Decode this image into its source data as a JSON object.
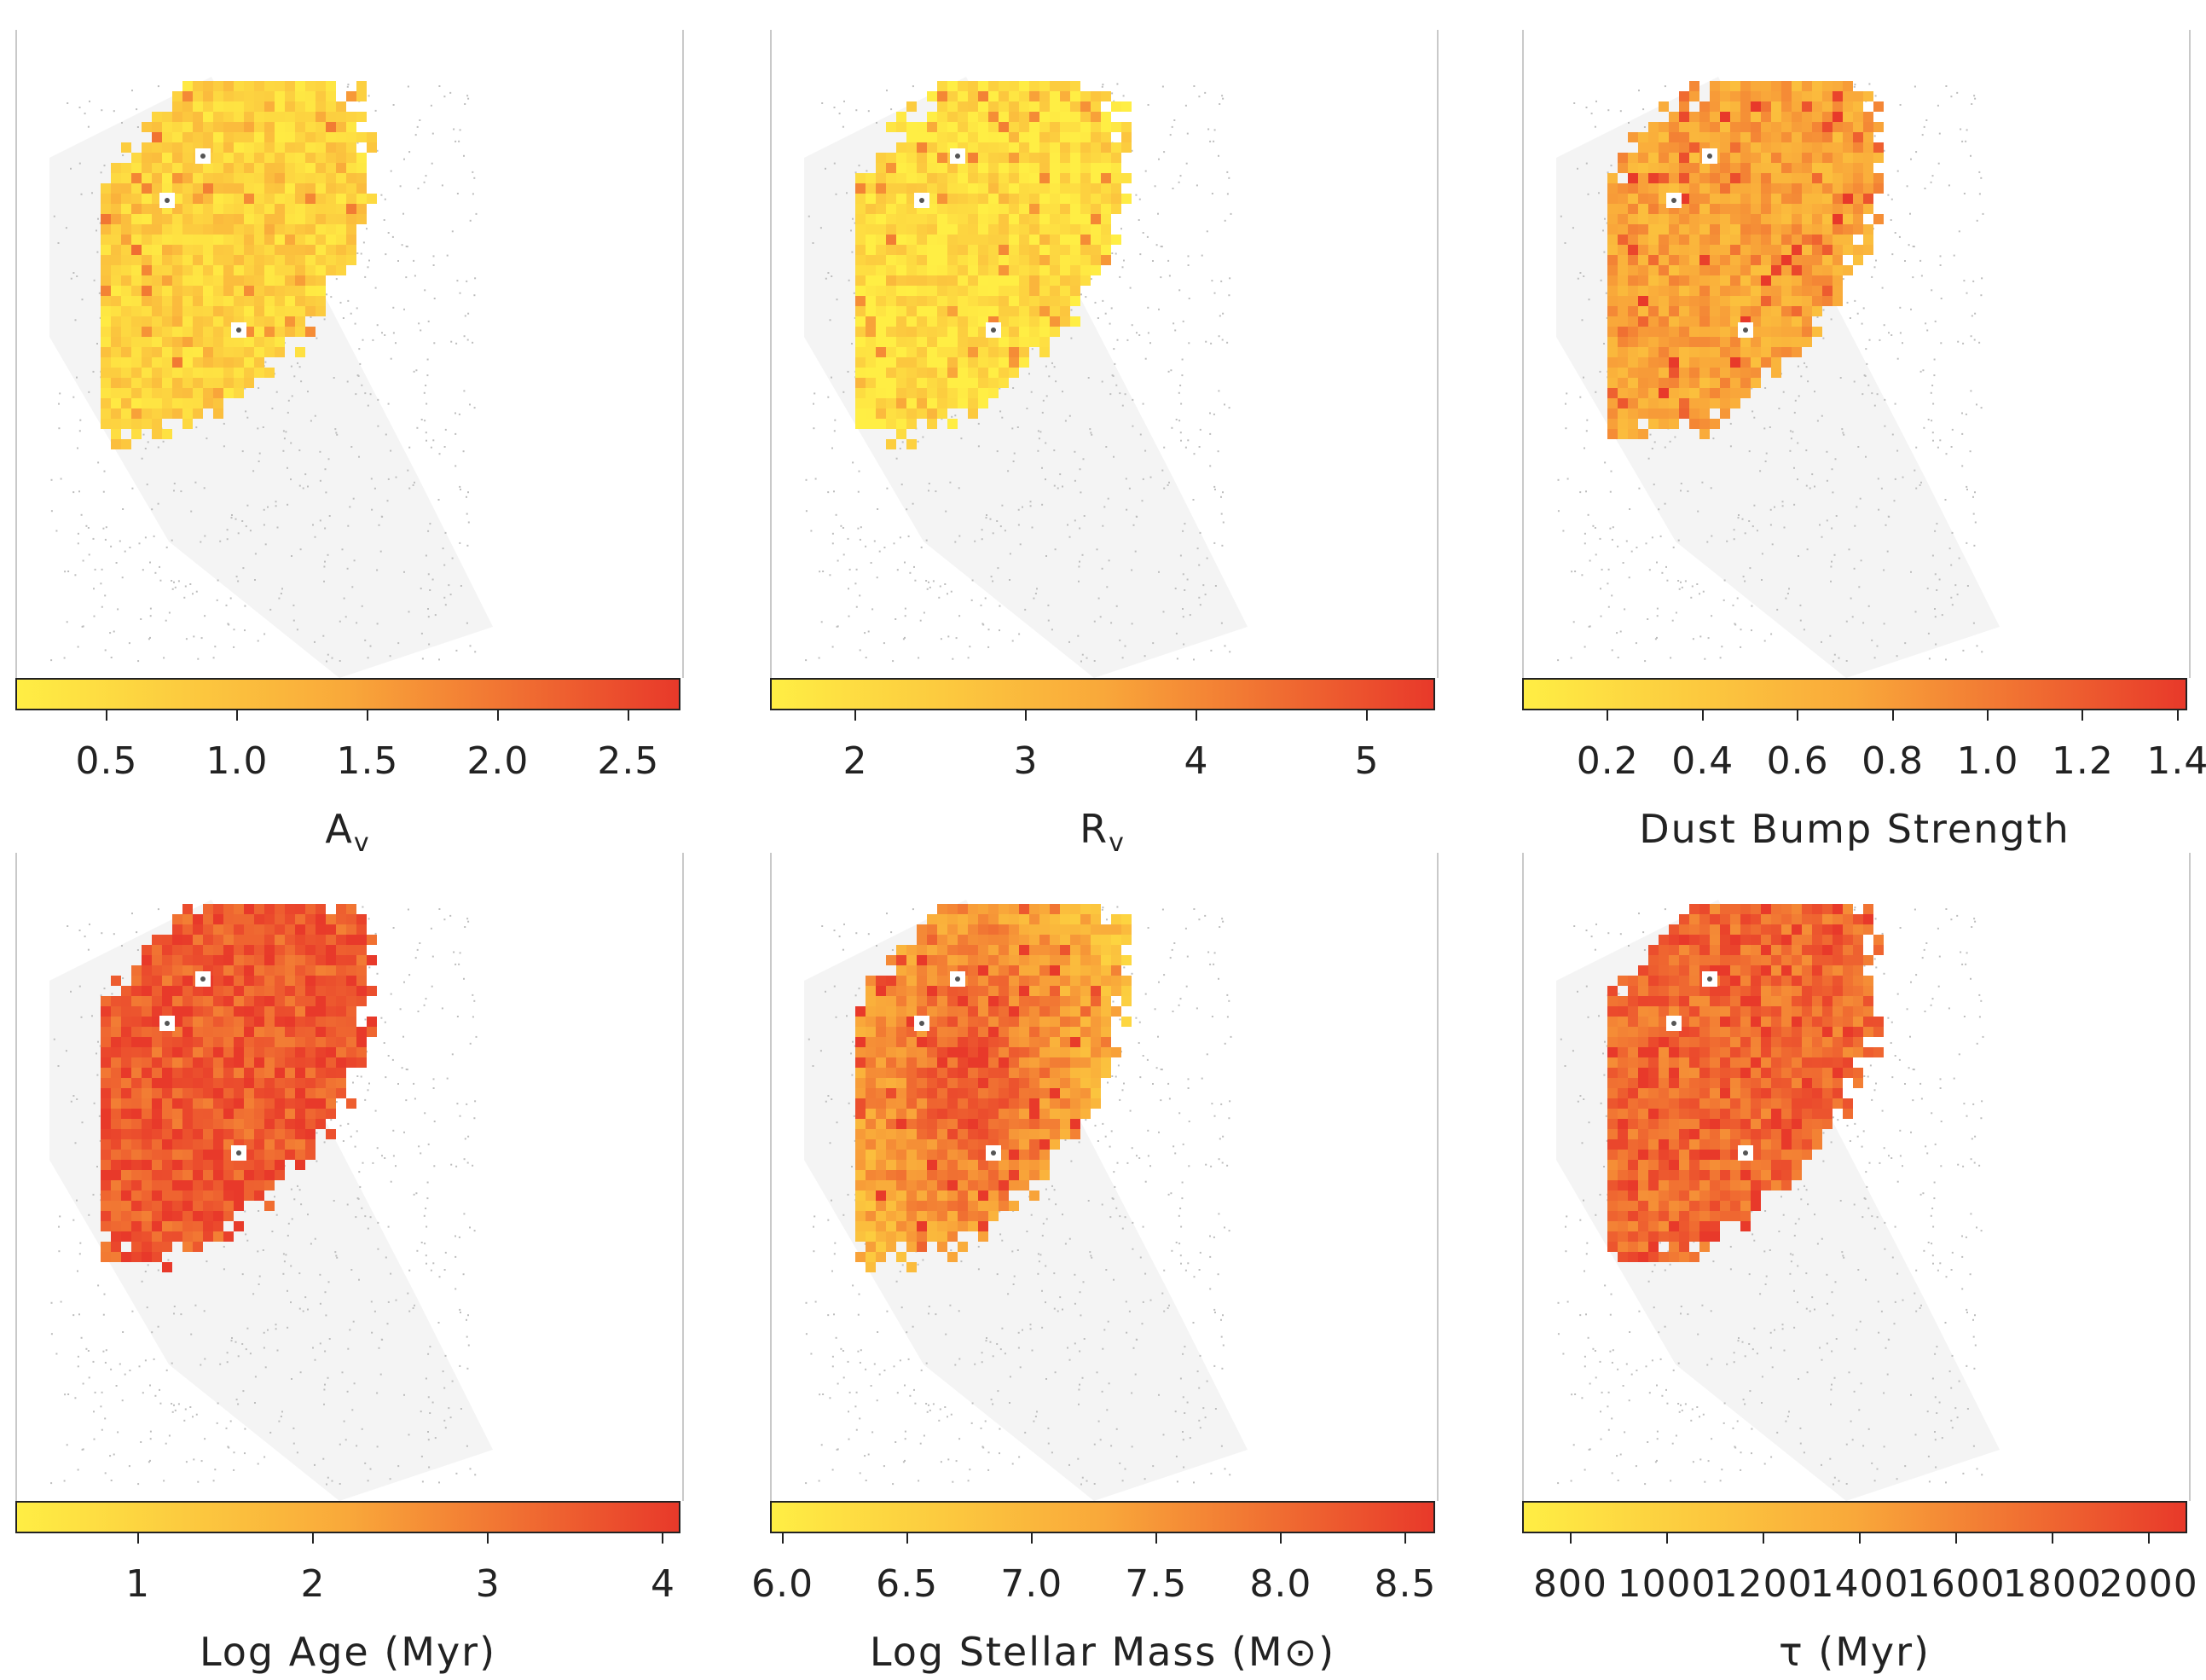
{
  "chart_data": [
    {
      "type": "heatmap",
      "name": "av",
      "xlabel": "A",
      "xlabel_sub": "v",
      "ticks": [
        0.5,
        1.0,
        1.5,
        2.0,
        2.5
      ],
      "tick_labels": [
        "0.5",
        "1.0",
        "1.5",
        "2.0",
        "2.5"
      ],
      "range": [
        0.15,
        2.7
      ],
      "colormap": [
        "#ffee44",
        "#f9a83a",
        "#e8392a"
      ],
      "mean_level": 0.2
    },
    {
      "type": "heatmap",
      "name": "rv",
      "xlabel": "R",
      "xlabel_sub": "v",
      "ticks": [
        2,
        3,
        4,
        5
      ],
      "tick_labels": [
        "2",
        "3",
        "4",
        "5"
      ],
      "range": [
        1.5,
        5.4
      ],
      "colormap": [
        "#ffee44",
        "#f9a83a",
        "#e8392a"
      ],
      "mean_level": 0.12
    },
    {
      "type": "heatmap",
      "name": "bump",
      "xlabel": "Dust Bump Strength",
      "xlabel_sub": "",
      "ticks": [
        0.2,
        0.4,
        0.6,
        0.8,
        1.0,
        1.2,
        1.4
      ],
      "tick_labels": [
        "0.2",
        "0.4",
        "0.6",
        "0.8",
        "1.0",
        "1.2",
        "1.4"
      ],
      "range": [
        0.02,
        1.42
      ],
      "colormap": [
        "#ffee44",
        "#f9a83a",
        "#e8392a"
      ],
      "mean_level": 0.5
    },
    {
      "type": "heatmap",
      "name": "age",
      "xlabel": "Log Age (Myr)",
      "xlabel_sub": "",
      "ticks": [
        1,
        2,
        3,
        4
      ],
      "tick_labels": [
        "1",
        "2",
        "3",
        "4"
      ],
      "range": [
        0.3,
        4.1
      ],
      "colormap": [
        "#ffee44",
        "#f9a83a",
        "#e8392a"
      ],
      "mean_level": 0.85
    },
    {
      "type": "heatmap",
      "name": "mass",
      "xlabel": "Log Stellar Mass (M⊙)",
      "xlabel_sub": "",
      "ticks": [
        6.0,
        6.5,
        7.0,
        7.5,
        8.0,
        8.5
      ],
      "tick_labels": [
        "6.0",
        "6.5",
        "7.0",
        "7.5",
        "8.0",
        "8.5"
      ],
      "range": [
        5.95,
        8.62
      ],
      "colormap": [
        "#ffee44",
        "#f9a83a",
        "#e8392a"
      ],
      "mean_level": 0.55
    },
    {
      "type": "heatmap",
      "name": "tau",
      "xlabel": "τ (Myr)",
      "xlabel_sub": "",
      "ticks": [
        800,
        1000,
        1200,
        1400,
        1600,
        1800,
        2000
      ],
      "tick_labels": [
        "800",
        "1000",
        "1200",
        "1400",
        "1600",
        "1800",
        "2000"
      ],
      "range": [
        700,
        2080
      ],
      "colormap": [
        "#ffee44",
        "#f9a83a",
        "#e8392a"
      ],
      "mean_level": 0.78
    }
  ]
}
